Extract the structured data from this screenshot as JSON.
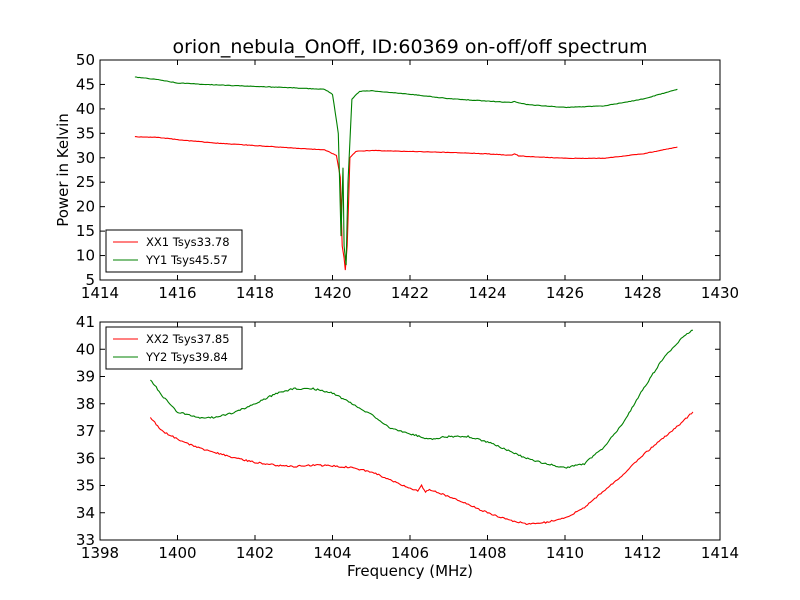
{
  "figure": {
    "title": "orion_nebula_OnOff, ID:60369 on-off/off spectrum"
  },
  "chart_data": [
    {
      "type": "line",
      "title": "orion_nebula_OnOff, ID:60369 on-off/off spectrum",
      "xlabel": "",
      "ylabel": "Power in Kelvin",
      "xlim": [
        1414,
        1430
      ],
      "ylim": [
        5,
        50
      ],
      "xticks": [
        1414,
        1416,
        1418,
        1420,
        1422,
        1424,
        1426,
        1428,
        1430
      ],
      "yticks": [
        5,
        10,
        15,
        20,
        25,
        30,
        35,
        40,
        45,
        50
      ],
      "grid": false,
      "legend": "lower-left",
      "series": [
        {
          "name": "XX1 Tsys33.78",
          "color": "#ff0000",
          "x": [
            1414.9,
            1415.5,
            1416.0,
            1417.0,
            1418.0,
            1419.0,
            1419.8,
            1420.1,
            1420.2,
            1420.25,
            1420.3,
            1420.33,
            1420.38,
            1420.45,
            1420.6,
            1421.0,
            1422.0,
            1423.0,
            1424.0,
            1424.6,
            1424.7,
            1424.8,
            1425.0,
            1426.0,
            1427.0,
            1428.0,
            1428.9
          ],
          "values": [
            34.3,
            34.2,
            33.7,
            33.0,
            32.5,
            32.0,
            31.6,
            30.5,
            26.0,
            12.0,
            9.5,
            7.0,
            12.0,
            30.0,
            31.3,
            31.5,
            31.3,
            31.1,
            30.8,
            30.5,
            30.8,
            30.4,
            30.3,
            29.9,
            29.9,
            30.8,
            32.2
          ]
        },
        {
          "name": "YY1 Tsys45.57",
          "color": "#008000",
          "x": [
            1414.9,
            1415.5,
            1416.0,
            1417.0,
            1418.0,
            1419.0,
            1419.8,
            1420.0,
            1420.15,
            1420.22,
            1420.27,
            1420.3,
            1420.35,
            1420.4,
            1420.5,
            1420.7,
            1421.0,
            1422.0,
            1423.0,
            1424.0,
            1424.6,
            1424.7,
            1425.0,
            1426.0,
            1427.0,
            1428.0,
            1428.9
          ],
          "values": [
            46.5,
            46.0,
            45.3,
            44.9,
            44.6,
            44.3,
            44.0,
            43.0,
            35.0,
            14.0,
            28.0,
            12.0,
            8.0,
            25.0,
            42.0,
            43.6,
            43.7,
            43.0,
            42.1,
            41.6,
            41.3,
            41.5,
            40.9,
            40.3,
            40.6,
            42.0,
            44.0
          ]
        }
      ]
    },
    {
      "type": "line",
      "title": "",
      "xlabel": "Frequency (MHz)",
      "ylabel": "",
      "xlim": [
        1398,
        1414
      ],
      "ylim": [
        33,
        41
      ],
      "xticks": [
        1398,
        1400,
        1402,
        1404,
        1406,
        1408,
        1410,
        1412,
        1414
      ],
      "yticks": [
        33,
        34,
        35,
        36,
        37,
        38,
        39,
        40,
        41
      ],
      "grid": false,
      "legend": "top-left",
      "series": [
        {
          "name": "XX2 Tsys37.85",
          "color": "#ff0000",
          "x": [
            1399.3,
            1399.6,
            1400.0,
            1400.5,
            1401.0,
            1401.5,
            1402.0,
            1402.5,
            1403.0,
            1403.5,
            1404.0,
            1404.5,
            1405.0,
            1405.5,
            1406.0,
            1406.2,
            1406.3,
            1406.4,
            1406.5,
            1407.0,
            1407.5,
            1408.0,
            1408.5,
            1409.0,
            1409.5,
            1410.0,
            1410.5,
            1411.0,
            1411.5,
            1412.0,
            1412.5,
            1413.0,
            1413.3
          ],
          "values": [
            37.5,
            37.0,
            36.7,
            36.4,
            36.2,
            36.0,
            35.85,
            35.75,
            35.7,
            35.75,
            35.72,
            35.65,
            35.5,
            35.2,
            34.9,
            34.8,
            35.0,
            34.75,
            34.85,
            34.6,
            34.3,
            34.0,
            33.75,
            33.6,
            33.65,
            33.8,
            34.2,
            34.8,
            35.4,
            36.1,
            36.7,
            37.3,
            37.7
          ]
        },
        {
          "name": "YY2 Tsys39.84",
          "color": "#008000",
          "x": [
            1399.3,
            1399.6,
            1400.0,
            1400.5,
            1401.0,
            1401.5,
            1402.0,
            1402.5,
            1403.0,
            1403.5,
            1404.0,
            1404.5,
            1405.0,
            1405.5,
            1406.0,
            1406.5,
            1407.0,
            1407.5,
            1408.0,
            1408.5,
            1409.0,
            1409.5,
            1410.0,
            1410.5,
            1411.0,
            1411.5,
            1412.0,
            1412.5,
            1413.0,
            1413.3
          ],
          "values": [
            38.9,
            38.3,
            37.7,
            37.5,
            37.5,
            37.7,
            38.0,
            38.35,
            38.55,
            38.55,
            38.4,
            38.0,
            37.6,
            37.1,
            36.9,
            36.7,
            36.8,
            36.8,
            36.6,
            36.3,
            36.0,
            35.8,
            35.65,
            35.8,
            36.4,
            37.3,
            38.5,
            39.6,
            40.4,
            40.7
          ]
        }
      ]
    }
  ]
}
